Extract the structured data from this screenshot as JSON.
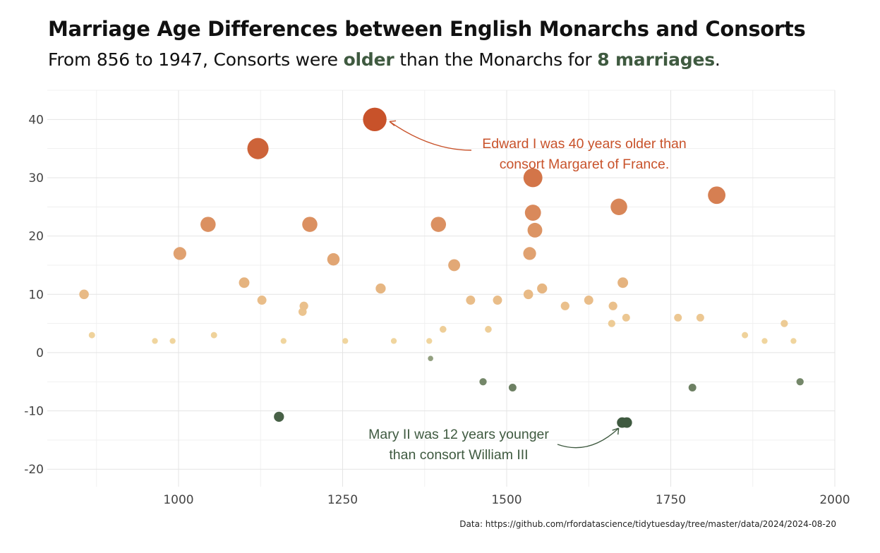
{
  "title": "Marriage Age Differences between English Monarchs and Consorts",
  "subtitle": {
    "part1": "From 856 to 1947, Consorts were ",
    "highlight1": "older",
    "part2": " than the Monarchs for ",
    "highlight2": "8 marriages",
    "part3": "."
  },
  "caption": "Data: https://github.com/rfordatascience/tidytuesday/tree/master/data/2024/2024-08-20",
  "colors": {
    "older_monarch_high": "#c8522a",
    "older_monarch_low": "#f2dca4",
    "older_consort": "#3f5a40",
    "older_consort_light": "#93a080",
    "grid": "#e4e4e4",
    "text": "#111111"
  },
  "annotations": [
    {
      "lines": [
        "Edward I was 40 years older than",
        "consort Margaret of France."
      ],
      "color": "#c8522a",
      "target": {
        "x": 1299,
        "y": 40
      }
    },
    {
      "lines": [
        "Mary II was 12 years younger",
        "than consort William III"
      ],
      "color": "#3f5a40",
      "target": {
        "x": 1676,
        "y": -12
      }
    }
  ],
  "chart_data": {
    "type": "scatter",
    "title": "Marriage Age Differences between English Monarchs and Consorts",
    "xlabel": "",
    "ylabel": "",
    "xlim": [
      800,
      2000
    ],
    "ylim": [
      -23,
      45
    ],
    "x_ticks": [
      1000,
      1250,
      1500,
      1750,
      2000
    ],
    "y_ticks": [
      -20,
      -10,
      0,
      10,
      20,
      30,
      40
    ],
    "grid": true,
    "legend": "none",
    "points": [
      {
        "x": 856,
        "y": 10
      },
      {
        "x": 868,
        "y": 3
      },
      {
        "x": 964,
        "y": 2
      },
      {
        "x": 991,
        "y": 2
      },
      {
        "x": 1002,
        "y": 17
      },
      {
        "x": 1045,
        "y": 22
      },
      {
        "x": 1054,
        "y": 3
      },
      {
        "x": 1100,
        "y": 12
      },
      {
        "x": 1121,
        "y": 35
      },
      {
        "x": 1127,
        "y": 9
      },
      {
        "x": 1153,
        "y": -11
      },
      {
        "x": 1160,
        "y": 2
      },
      {
        "x": 1189,
        "y": 7
      },
      {
        "x": 1191,
        "y": 8
      },
      {
        "x": 1200,
        "y": 22
      },
      {
        "x": 1236,
        "y": 16
      },
      {
        "x": 1254,
        "y": 2
      },
      {
        "x": 1299,
        "y": 40
      },
      {
        "x": 1308,
        "y": 11
      },
      {
        "x": 1328,
        "y": 2
      },
      {
        "x": 1382,
        "y": 2
      },
      {
        "x": 1384,
        "y": -1
      },
      {
        "x": 1396,
        "y": 22
      },
      {
        "x": 1403,
        "y": 4
      },
      {
        "x": 1420,
        "y": 15
      },
      {
        "x": 1445,
        "y": 9
      },
      {
        "x": 1464,
        "y": -5
      },
      {
        "x": 1472,
        "y": 4
      },
      {
        "x": 1486,
        "y": 9
      },
      {
        "x": 1509,
        "y": -6
      },
      {
        "x": 1533,
        "y": 10
      },
      {
        "x": 1535,
        "y": 17
      },
      {
        "x": 1540,
        "y": 30
      },
      {
        "x": 1540,
        "y": 24
      },
      {
        "x": 1543,
        "y": 21
      },
      {
        "x": 1554,
        "y": 11
      },
      {
        "x": 1589,
        "y": 8
      },
      {
        "x": 1625,
        "y": 9
      },
      {
        "x": 1660,
        "y": 5
      },
      {
        "x": 1662,
        "y": 8
      },
      {
        "x": 1671,
        "y": 25
      },
      {
        "x": 1677,
        "y": 12
      },
      {
        "x": 1676,
        "y": -12
      },
      {
        "x": 1683,
        "y": -12
      },
      {
        "x": 1682,
        "y": 6
      },
      {
        "x": 1761,
        "y": 6
      },
      {
        "x": 1783,
        "y": -6
      },
      {
        "x": 1795,
        "y": 6
      },
      {
        "x": 1820,
        "y": 27
      },
      {
        "x": 1863,
        "y": 3
      },
      {
        "x": 1893,
        "y": 2
      },
      {
        "x": 1923,
        "y": 5
      },
      {
        "x": 1937,
        "y": 2
      },
      {
        "x": 1947,
        "y": -5
      }
    ]
  }
}
